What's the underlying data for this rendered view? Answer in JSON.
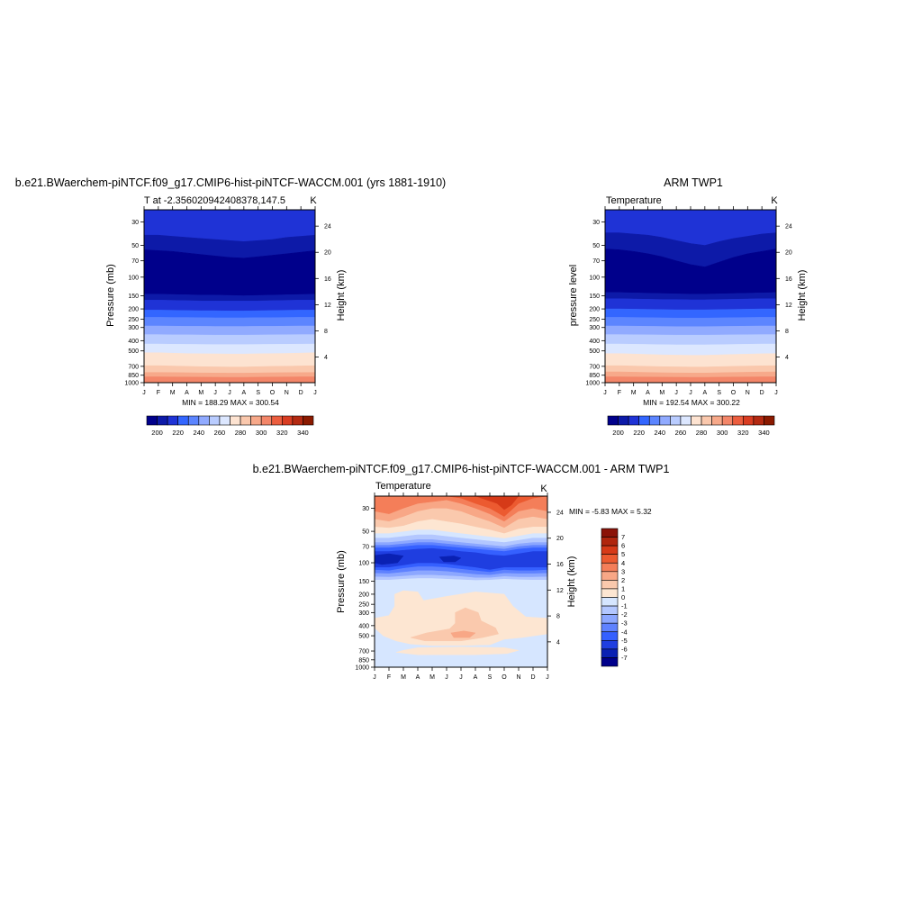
{
  "panels": {
    "model": {
      "title": "b.e21.BWaerchem-piNTCF.f09_g17.CMIP6-hist-piNTCF-WACCM.001 (yrs 1881-1910)",
      "subtitle": "T at -2.356020942408378,147.5",
      "units": "K",
      "ylabel": "Pressure (mb)",
      "ylabel_right": "Height (km)",
      "stats": "MIN = 188.29 MAX = 300.54"
    },
    "obs": {
      "title": "ARM TWP1",
      "subtitle": "Temperature",
      "units": "K",
      "ylabel": "pressure level",
      "ylabel_right": "Height (km)",
      "stats": "MIN = 192.54 MAX = 300.22"
    },
    "diff": {
      "title": "b.e21.BWaerchem-piNTCF.f09_g17.CMIP6-hist-piNTCF-WACCM.001 - ARM TWP1",
      "subtitle": "Temperature",
      "units": "K",
      "ylabel": "Pressure (mb)",
      "ylabel_right": "Height (km)",
      "stats": "MIN =  -5.83 MAX =   5.32"
    }
  },
  "chart_data": [
    {
      "id": "model",
      "type": "heatmap",
      "title": "b.e21.BWaerchem-piNTCF.f09_g17.CMIP6-hist-piNTCF-WACCM.001 (yrs 1881-1910)",
      "subtitle": "T at -2.356020942408378,147.5",
      "x_ticks": [
        "J",
        "F",
        "M",
        "A",
        "M",
        "J",
        "J",
        "A",
        "S",
        "O",
        "N",
        "D",
        "J"
      ],
      "y_ticks": [
        "30",
        "50",
        "70",
        "100",
        "150",
        "200",
        "250",
        "300",
        "400",
        "500",
        "700",
        "850",
        "1000"
      ],
      "y2_ticks": [
        "24",
        "20",
        "16",
        "12",
        "8",
        "4"
      ],
      "ylabel": "Pressure (mb)",
      "ylabel_right": "Height (km)",
      "units": "K",
      "colorbar_labels": [
        "200",
        "220",
        "240",
        "260",
        "280",
        "300",
        "320",
        "340"
      ],
      "min": 188.29,
      "max": 300.54
    },
    {
      "id": "obs",
      "type": "heatmap",
      "title": "ARM TWP1",
      "subtitle": "Temperature",
      "x_ticks": [
        "J",
        "F",
        "M",
        "A",
        "M",
        "J",
        "J",
        "A",
        "S",
        "O",
        "N",
        "D",
        "J"
      ],
      "y_ticks": [
        "30",
        "50",
        "70",
        "100",
        "150",
        "200",
        "250",
        "300",
        "400",
        "500",
        "700",
        "850",
        "1000"
      ],
      "y2_ticks": [
        "24",
        "20",
        "16",
        "12",
        "8",
        "4"
      ],
      "ylabel": "pressure level",
      "ylabel_right": "Height (km)",
      "units": "K",
      "colorbar_labels": [
        "200",
        "220",
        "240",
        "260",
        "280",
        "300",
        "320",
        "340"
      ],
      "min": 192.54,
      "max": 300.22
    },
    {
      "id": "diff",
      "type": "heatmap",
      "title": "b.e21.BWaerchem-piNTCF.f09_g17.CMIP6-hist-piNTCF-WACCM.001 - ARM TWP1",
      "subtitle": "Temperature",
      "x_ticks": [
        "J",
        "F",
        "M",
        "A",
        "M",
        "J",
        "J",
        "A",
        "S",
        "O",
        "N",
        "D",
        "J"
      ],
      "y_ticks": [
        "30",
        "50",
        "70",
        "100",
        "150",
        "200",
        "250",
        "300",
        "400",
        "500",
        "700",
        "850",
        "1000"
      ],
      "y2_ticks": [
        "24",
        "20",
        "16",
        "12",
        "8",
        "4"
      ],
      "ylabel": "Pressure (mb)",
      "ylabel_right": "Height (km)",
      "units": "K",
      "colorbar_labels": [
        "7",
        "6",
        "5",
        "4",
        "3",
        "2",
        "1",
        "0",
        "-1",
        "-2",
        "-3",
        "-4",
        "-5",
        "-6",
        "-7"
      ],
      "min": -5.83,
      "max": 5.32
    }
  ],
  "colors": {
    "abs_scale": [
      "#00008b",
      "#0d1aa8",
      "#1f33d6",
      "#3366ff",
      "#5c85ff",
      "#90aaff",
      "#b9ccff",
      "#dce7ff",
      "#fde3d1",
      "#fac8ad",
      "#f7a98a",
      "#f38669",
      "#ec5e3f",
      "#d93d22",
      "#b42a12",
      "#8b1a00"
    ],
    "diff_scale": [
      "#00008b",
      "#0a21b3",
      "#1f3ee0",
      "#3560ff",
      "#5f82ff",
      "#8ca7ff",
      "#b3c7ff",
      "#d6e6ff",
      "#fde6d2",
      "#fac9ad",
      "#f8a786",
      "#f47e59",
      "#ec5a30",
      "#d63a18",
      "#b0260e",
      "#8b1308"
    ]
  }
}
